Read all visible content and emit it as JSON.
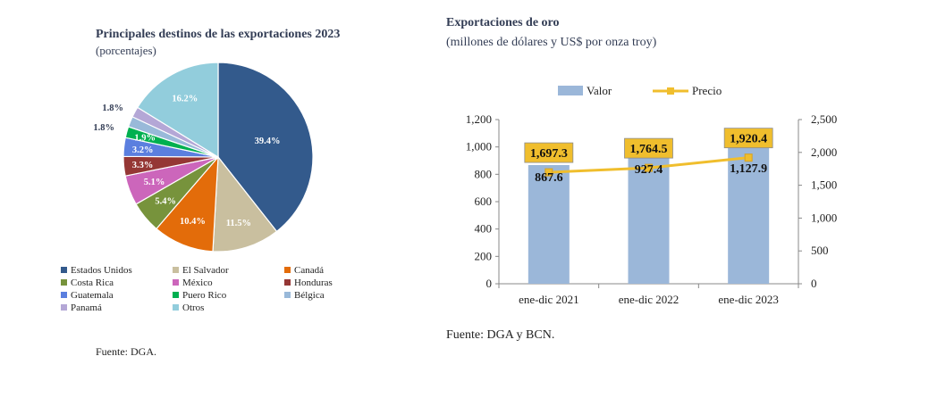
{
  "pie": {
    "title": "Principales destinos de las exportaciones 2023",
    "subtitle": "(porcentajes)",
    "source": "Fuente: DGA."
  },
  "bar": {
    "title": "Exportaciones de oro",
    "subtitle": "(millones de dólares y US$ por onza troy)",
    "source": "Fuente: DGA y BCN."
  },
  "chart_data": [
    {
      "type": "pie",
      "title": "Principales destinos de las exportaciones 2023",
      "subtitle": "(porcentajes)",
      "categories": [
        "Estados Unidos",
        "El Salvador",
        "Canadá",
        "Costa Rica",
        "México",
        "Honduras",
        "Guatemala",
        "Puero Rico",
        "Bélgica",
        "Panamá",
        "Otros"
      ],
      "values": [
        39.4,
        11.5,
        10.4,
        5.4,
        5.1,
        3.3,
        3.2,
        1.9,
        1.8,
        1.8,
        16.2
      ],
      "labels": [
        "39.4%",
        "11.5%",
        "10.4%",
        "5.4%",
        "5.1%",
        "3.3%",
        "3.2%",
        "1.9%",
        "1.8%",
        "1.8%",
        "16.2%"
      ],
      "colors": [
        "#335a8c",
        "#c9bf9f",
        "#e36c0a",
        "#77933c",
        "#cc66bb",
        "#953735",
        "#5b7fdf",
        "#00b050",
        "#99b9d9",
        "#b4a7d6",
        "#92cddc"
      ],
      "legend_position": "bottom"
    },
    {
      "type": "bar",
      "title": "Exportaciones de oro",
      "subtitle": "(millones de dólares y US$ por onza troy)",
      "categories": [
        "ene-dic 2021",
        "ene-dic 2022",
        "ene-dic 2023"
      ],
      "series": [
        {
          "name": "Valor",
          "type": "bar",
          "axis": "left",
          "values": [
            867.6,
            927.4,
            1127.9
          ],
          "labels": [
            "867.6",
            "927.4",
            "1,127.9"
          ],
          "color": "#9bb7d9"
        },
        {
          "name": "Precio",
          "type": "line",
          "axis": "right",
          "values": [
            1697.3,
            1764.5,
            1920.4
          ],
          "labels": [
            "1,697.3",
            "1,764.5",
            "1,920.4"
          ],
          "color": "#f0be2d"
        }
      ],
      "y_left": {
        "min": 0,
        "max": 1200,
        "ticks": [
          "0",
          "200",
          "400",
          "600",
          "800",
          "1,000",
          "1,200"
        ]
      },
      "y_right": {
        "min": 0,
        "max": 2500,
        "ticks": [
          "0",
          "500",
          "1,000",
          "1,500",
          "2,000",
          "2,500"
        ]
      },
      "legend_position": "top",
      "grid": false
    }
  ]
}
